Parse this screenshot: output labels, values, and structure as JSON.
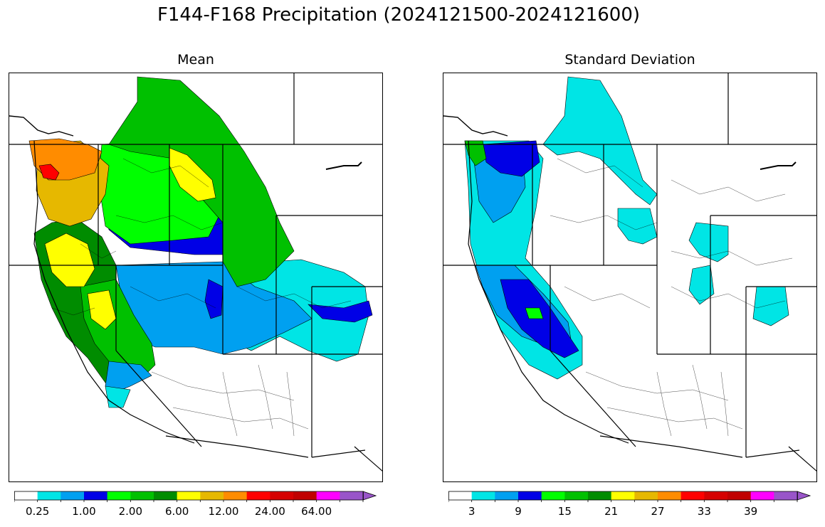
{
  "title": "F144-F168 Precipitation (2024121500-2024121600)",
  "panels": [
    {
      "name": "mean",
      "title": "Mean",
      "colorbar": {
        "colors": [
          "#ffffff",
          "#00e5e5",
          "#00a0f0",
          "#0000e6",
          "#00ff00",
          "#00c000",
          "#008c00",
          "#ffff00",
          "#e6b800",
          "#ff8c00",
          "#ff0000",
          "#d60000",
          "#c00000",
          "#ff00ff",
          "#9955c9"
        ],
        "extend": "max",
        "tick_labels": [
          "0.25",
          "1.00",
          "2.00",
          "6.00",
          "12.00",
          "24.00",
          "64.00"
        ],
        "label_positions": [
          1,
          3,
          5,
          7,
          9,
          11,
          13
        ]
      }
    },
    {
      "name": "std",
      "title": "Standard Deviation",
      "colorbar": {
        "colors": [
          "#ffffff",
          "#00e5e5",
          "#00a0f0",
          "#0000e6",
          "#00ff00",
          "#00c000",
          "#008c00",
          "#ffff00",
          "#e6b800",
          "#ff8c00",
          "#ff0000",
          "#d60000",
          "#c00000",
          "#ff00ff",
          "#9955c9"
        ],
        "extend": "max",
        "tick_labels": [
          "3",
          "9",
          "15",
          "21",
          "27",
          "33",
          "39"
        ],
        "label_positions": [
          1,
          3,
          5,
          7,
          9,
          11,
          13
        ]
      }
    }
  ]
}
